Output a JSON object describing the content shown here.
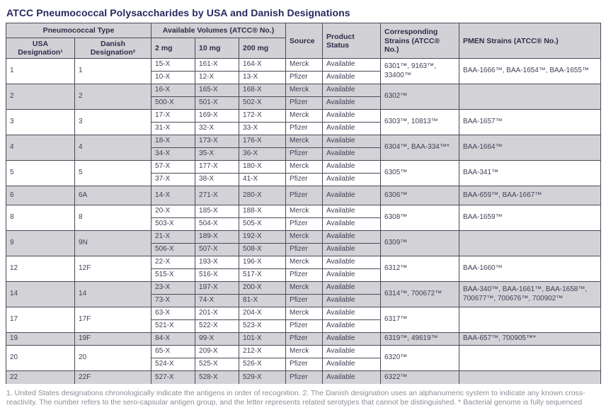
{
  "page": {
    "title": "ATCC Pneumococcal Polysaccharides by USA and Danish Designations",
    "footnote": "1. United States designations chronologically indicate the antigens in order of recognition. 2. The Danish designation uses an alphanumeric system to indicate any known cross-reactivity. The number refers to the sero-capsular antigen group, and the letter represents related serotypes that cannot be distinguished. * Bacterial genome is fully sequenced"
  },
  "colors": {
    "title_text": "#29285e",
    "header_bg": "#d2d1d5",
    "shaded_row_bg": "#d3d2d6",
    "body_text": "#403f55",
    "border": "#4b4a58",
    "footnote_text": "#8d8c97"
  },
  "table": {
    "headers": {
      "pneumococcal_type": "Pneumococcal Type",
      "usa_designation": "USA Designation¹",
      "danish_designation": "Danish Designation²",
      "available_volumes": "Available Volumes (ATCC® No.)",
      "vol_2mg": "2 mg",
      "vol_10mg": "10 mg",
      "vol_200mg": "200 mg",
      "source": "Source",
      "product_status": "Product Status",
      "corresponding_strains": "Corresponding Strains (ATCC® No.)",
      "pmen_strains": "PMEN Strains (ATCC® No.)"
    },
    "groups": [
      {
        "usa": "1",
        "danish": "1",
        "shaded": false,
        "rows": [
          [
            "15-X",
            "161-X",
            "164-X",
            "Merck",
            "Available"
          ],
          [
            "10-X",
            "12-X",
            "13-X",
            "Pfizer",
            "Available"
          ]
        ],
        "strains": "6301™, 9163™, 33400™",
        "pmen": "BAA-1666™, BAA-1654™, BAA-1655™"
      },
      {
        "usa": "2",
        "danish": "2",
        "shaded": true,
        "rows": [
          [
            "16-X",
            "165-X",
            "168-X",
            "Merck",
            "Available"
          ],
          [
            "500-X",
            "501-X",
            "502-X",
            "Pfizer",
            "Available"
          ]
        ],
        "strains": "6302™",
        "pmen": ""
      },
      {
        "usa": "3",
        "danish": "3",
        "shaded": false,
        "rows": [
          [
            "17-X",
            "169-X",
            "172-X",
            "Merck",
            "Available"
          ],
          [
            "31-X",
            "32-X",
            "33-X",
            "Pfizer",
            "Available"
          ]
        ],
        "strains": "6303™, 10813™",
        "pmen": "BAA-1657™"
      },
      {
        "usa": "4",
        "danish": "4",
        "shaded": true,
        "rows": [
          [
            "18-X",
            "173-X",
            "176-X",
            "Merck",
            "Available"
          ],
          [
            "34-X",
            "35-X",
            "36-X",
            "Pfizer",
            "Available"
          ]
        ],
        "strains": "6304™, BAA-334™*",
        "pmen": "BAA-1664™"
      },
      {
        "usa": "5",
        "danish": "5",
        "shaded": false,
        "rows": [
          [
            "57-X",
            "177-X",
            "180-X",
            "Merck",
            "Available"
          ],
          [
            "37-X",
            "38-X",
            "41-X",
            "Pfizer",
            "Available"
          ]
        ],
        "strains": "6305™",
        "pmen": "BAA-341™"
      },
      {
        "usa": "6",
        "danish": "6A",
        "shaded": true,
        "tall": true,
        "rows": [
          [
            "14-X",
            "271-X",
            "280-X",
            "Pfizer",
            "Available"
          ]
        ],
        "strains": "6306™",
        "pmen": "BAA-659™, BAA-1667™"
      },
      {
        "usa": "8",
        "danish": "8",
        "shaded": false,
        "rows": [
          [
            "20-X",
            "185-X",
            "188-X",
            "Merck",
            "Available"
          ],
          [
            "503-X",
            "504-X",
            "505-X",
            "Pfizer",
            "Available"
          ]
        ],
        "strains": "6308™",
        "pmen": "BAA-1659™"
      },
      {
        "usa": "9",
        "danish": "9N",
        "shaded": true,
        "rows": [
          [
            "21-X",
            "189-X",
            "192-X",
            "Merck",
            "Available"
          ],
          [
            "506-X",
            "507-X",
            "508-X",
            "Pfizer",
            "Available"
          ]
        ],
        "strains": "6309™",
        "pmen": ""
      },
      {
        "usa": "12",
        "danish": "12F",
        "shaded": false,
        "rows": [
          [
            "22-X",
            "193-X",
            "196-X",
            "Merck",
            "Available"
          ],
          [
            "515-X",
            "516-X",
            "517-X",
            "Pfizer",
            "Available"
          ]
        ],
        "strains": "6312™",
        "pmen": "BAA-1660™"
      },
      {
        "usa": "14",
        "danish": "14",
        "shaded": true,
        "rows": [
          [
            "23-X",
            "197-X",
            "200-X",
            "Merck",
            "Available"
          ],
          [
            "73-X",
            "74-X",
            "81-X",
            "Pfizer",
            "Available"
          ]
        ],
        "strains": "6314™, 700672™",
        "pmen": "BAA-340™, BAA-1661™, BAA-1658™, 700677™, 700676™, 700902™"
      },
      {
        "usa": "17",
        "danish": "17F",
        "shaded": false,
        "rows": [
          [
            "63-X",
            "201-X",
            "204-X",
            "Merck",
            "Available"
          ],
          [
            "521-X",
            "522-X",
            "523-X",
            "Pfizer",
            "Available"
          ]
        ],
        "strains": "6317™",
        "pmen": ""
      },
      {
        "usa": "19",
        "danish": "19F",
        "shaded": true,
        "rows": [
          [
            "84-X",
            "99-X",
            "101-X",
            "Pfizer",
            "Available"
          ]
        ],
        "strains": "6319™, 49619™",
        "pmen": "BAA-657™, 700905™*"
      },
      {
        "usa": "20",
        "danish": "20",
        "shaded": false,
        "rows": [
          [
            "65-X",
            "209-X",
            "212-X",
            "Merck",
            "Available"
          ],
          [
            "524-X",
            "525-X",
            "526-X",
            "Pfizer",
            "Available"
          ]
        ],
        "strains": "6320™",
        "pmen": ""
      },
      {
        "usa": "22",
        "danish": "22F",
        "shaded": true,
        "rows": [
          [
            "527-X",
            "528-X",
            "529-X",
            "Pfizer",
            "Available"
          ]
        ],
        "strains": "6322™",
        "pmen": ""
      }
    ]
  }
}
